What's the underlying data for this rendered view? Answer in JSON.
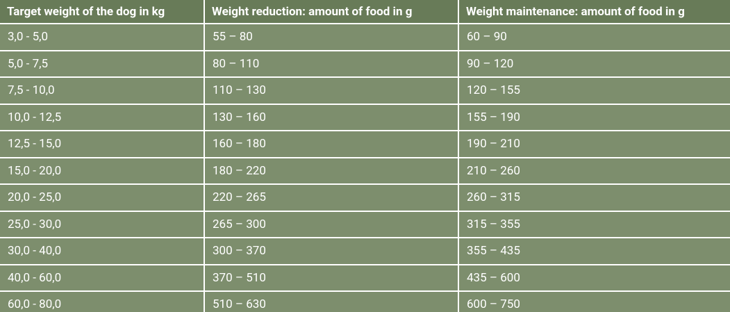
{
  "table": {
    "columns": [
      "Target weight of the dog in kg",
      "Weight reduction: amount of food in g",
      "Weight maintenance: amount of food in g"
    ],
    "rows": [
      [
        "3,0 - 5,0",
        "55 – 80",
        "60 – 90"
      ],
      [
        "5,0 - 7,5",
        "80 – 110",
        "90 – 120"
      ],
      [
        "7,5 - 10,0",
        "110 – 130",
        "120 – 155"
      ],
      [
        "10,0 - 12,5",
        "130 – 160",
        "155 – 190"
      ],
      [
        "12,5 - 15,0",
        "160 – 180",
        "190 – 210"
      ],
      [
        "15,0 - 20,0",
        "180 – 220",
        "210 – 260"
      ],
      [
        "20,0 - 25,0",
        "220 – 265",
        "260 – 315"
      ],
      [
        "25,0 - 30,0",
        "265 – 300",
        "315 – 355"
      ],
      [
        "30,0 - 40,0",
        "300 – 370",
        "355 – 435"
      ],
      [
        "40,0 - 60,0",
        "370 – 510",
        "435 – 600"
      ],
      [
        "60,0 - 80,0",
        "510 – 630",
        "600 – 750"
      ]
    ]
  }
}
